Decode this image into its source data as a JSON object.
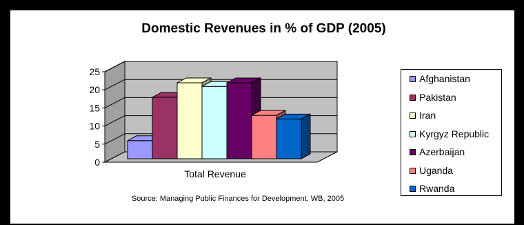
{
  "chart_data": {
    "type": "bar",
    "title": "Domestic Revenues in %  of GDP (2005)",
    "categories": [
      "Total Revenue"
    ],
    "ylim": [
      0,
      25
    ],
    "yticks": [
      0,
      5,
      10,
      15,
      20,
      25
    ],
    "series": [
      {
        "name": "Afghanistan",
        "values": [
          5
        ],
        "color": "#9999ff"
      },
      {
        "name": "Pakistan",
        "values": [
          17
        ],
        "color": "#993366"
      },
      {
        "name": "Iran",
        "values": [
          21
        ],
        "color": "#ffffcc"
      },
      {
        "name": "Kyrgyz Republic",
        "values": [
          20
        ],
        "color": "#ccffff"
      },
      {
        "name": "Azerbaijan",
        "values": [
          21
        ],
        "color": "#660066"
      },
      {
        "name": "Uganda",
        "values": [
          12
        ],
        "color": "#ff8080"
      },
      {
        "name": "Rwanda",
        "values": [
          11
        ],
        "color": "#0066cc"
      }
    ],
    "grid": true,
    "legend_position": "right",
    "style": "3d"
  },
  "source_text": "Source: Managing Public Finances for Development, WB, 2005"
}
